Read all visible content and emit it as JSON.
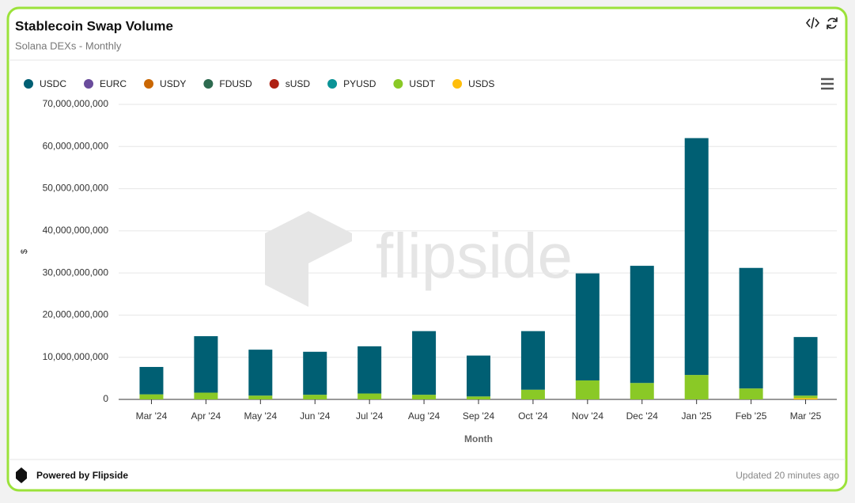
{
  "chart_data": {
    "type": "stacked-bar",
    "title": "Stablecoin Swap Volume",
    "subtitle": "Solana DEXs - Monthly",
    "x_label": "Month",
    "y_label": "$",
    "watermark": "flipside",
    "footer": "Powered by Flipside",
    "updated": "Updated 20 minutes ago",
    "categories": [
      "Mar '24",
      "Apr '24",
      "May '24",
      "Jun '24",
      "Jul '24",
      "Aug '24",
      "Sep '24",
      "Oct '24",
      "Nov '24",
      "Dec '24",
      "Jan '25",
      "Feb '25",
      "Mar '25"
    ],
    "series": [
      {
        "name": "USDC",
        "color": "#005f73",
        "values": [
          6500000000,
          13400000000,
          10900000000,
          10200000000,
          11200000000,
          15100000000,
          9700000000,
          13900000000,
          25400000000,
          27800000000,
          56200000000,
          28600000000,
          13900000000
        ]
      },
      {
        "name": "EURC",
        "color": "#6a4c9c",
        "values": [
          0,
          0,
          0,
          0,
          0,
          0,
          0,
          0,
          0,
          0,
          0,
          0,
          0
        ]
      },
      {
        "name": "USDY",
        "color": "#ca6702",
        "values": [
          0,
          0,
          0,
          0,
          0,
          0,
          0,
          0,
          0,
          0,
          0,
          0,
          0
        ]
      },
      {
        "name": "FDUSD",
        "color": "#2d6a4f",
        "values": [
          0,
          0,
          0,
          0,
          0,
          0,
          0,
          0,
          0,
          0,
          0,
          0,
          0
        ]
      },
      {
        "name": "sUSD",
        "color": "#ae2012",
        "values": [
          0,
          0,
          0,
          0,
          0,
          0,
          0,
          0,
          0,
          0,
          0,
          0,
          0
        ]
      },
      {
        "name": "PYUSD",
        "color": "#0a9396",
        "values": [
          0,
          0,
          0,
          0,
          0,
          0,
          0,
          0,
          0,
          0,
          0,
          0,
          0
        ]
      },
      {
        "name": "USDT",
        "color": "#8ac926",
        "values": [
          1200000000,
          1600000000,
          900000000,
          1100000000,
          1400000000,
          1100000000,
          700000000,
          2300000000,
          4500000000,
          3900000000,
          5800000000,
          2600000000,
          600000000
        ]
      },
      {
        "name": "USDS",
        "color": "#ffbe0b",
        "values": [
          0,
          0,
          0,
          0,
          0,
          0,
          0,
          0,
          0,
          0,
          0,
          0,
          300000000
        ]
      }
    ],
    "ylim": [
      0,
      70000000000
    ],
    "yticks": [
      0,
      {
        "value": 10000000000,
        "label": "10,000,000,000"
      },
      {
        "value": 20000000000,
        "label": "20,000,000,000"
      },
      {
        "value": 30000000000,
        "label": "30,000,000,000"
      },
      {
        "value": 40000000000,
        "label": "40,000,000,000"
      },
      {
        "value": 50000000000,
        "label": "50,000,000,000"
      },
      {
        "value": 60000000000,
        "label": "60,000,000,000"
      },
      {
        "value": 70000000000,
        "label": "70,000,000,000"
      }
    ],
    "grid": true
  }
}
